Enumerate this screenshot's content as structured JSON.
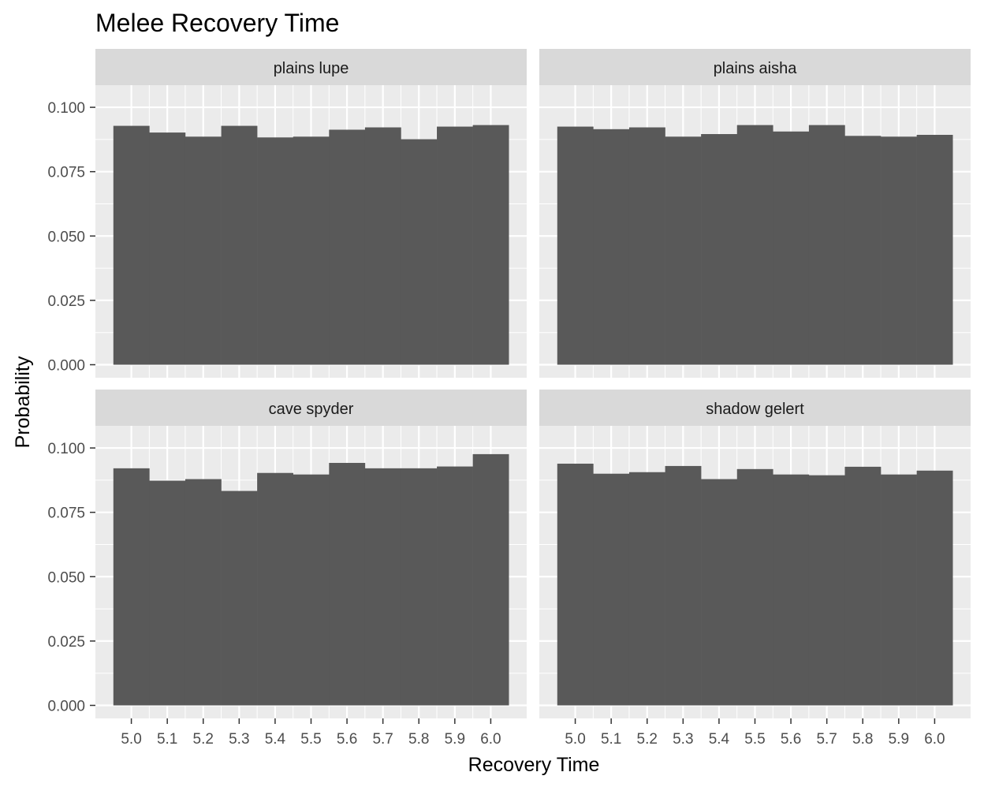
{
  "chart_data": {
    "type": "bar",
    "title": "Melee Recovery Time",
    "xlabel": "Recovery Time",
    "ylabel": "Probability",
    "x_ticks": [
      "5.0",
      "5.1",
      "5.2",
      "5.3",
      "5.4",
      "5.5",
      "5.6",
      "5.7",
      "5.8",
      "5.9",
      "6.0"
    ],
    "y_ticks": [
      "0.000",
      "0.025",
      "0.050",
      "0.075",
      "0.100"
    ],
    "xlim": [
      4.9,
      6.1
    ],
    "ylim": [
      0,
      0.1
    ],
    "bin_width": 0.1,
    "grid": true,
    "layout": "2x2 facets",
    "colors": {
      "bar": "#595959",
      "panel": "#ebebeb",
      "grid": "#ffffff",
      "strip": "#d9d9d9"
    },
    "panels": [
      {
        "label": "plains lupe",
        "x": [
          5.0,
          5.1,
          5.2,
          5.3,
          5.4,
          5.5,
          5.6,
          5.7,
          5.8,
          5.9,
          6.0
        ],
        "values": [
          0.0928,
          0.0902,
          0.0886,
          0.0928,
          0.0883,
          0.0886,
          0.0913,
          0.0922,
          0.0876,
          0.0925,
          0.0931
        ]
      },
      {
        "label": "plains aisha",
        "x": [
          5.0,
          5.1,
          5.2,
          5.3,
          5.4,
          5.5,
          5.6,
          5.7,
          5.8,
          5.9,
          6.0
        ],
        "values": [
          0.0925,
          0.0915,
          0.0922,
          0.0886,
          0.0896,
          0.0931,
          0.0906,
          0.0931,
          0.0889,
          0.0886,
          0.0893
        ]
      },
      {
        "label": "cave spyder",
        "x": [
          5.0,
          5.1,
          5.2,
          5.3,
          5.4,
          5.5,
          5.6,
          5.7,
          5.8,
          5.9,
          6.0
        ],
        "values": [
          0.0921,
          0.0873,
          0.0879,
          0.0833,
          0.0903,
          0.0897,
          0.0942,
          0.0921,
          0.0921,
          0.0928,
          0.0976
        ]
      },
      {
        "label": "shadow gelert",
        "x": [
          5.0,
          5.1,
          5.2,
          5.3,
          5.4,
          5.5,
          5.6,
          5.7,
          5.8,
          5.9,
          6.0
        ],
        "values": [
          0.0939,
          0.09,
          0.0906,
          0.093,
          0.0879,
          0.0918,
          0.0897,
          0.0894,
          0.0927,
          0.0897,
          0.0912
        ]
      }
    ]
  }
}
